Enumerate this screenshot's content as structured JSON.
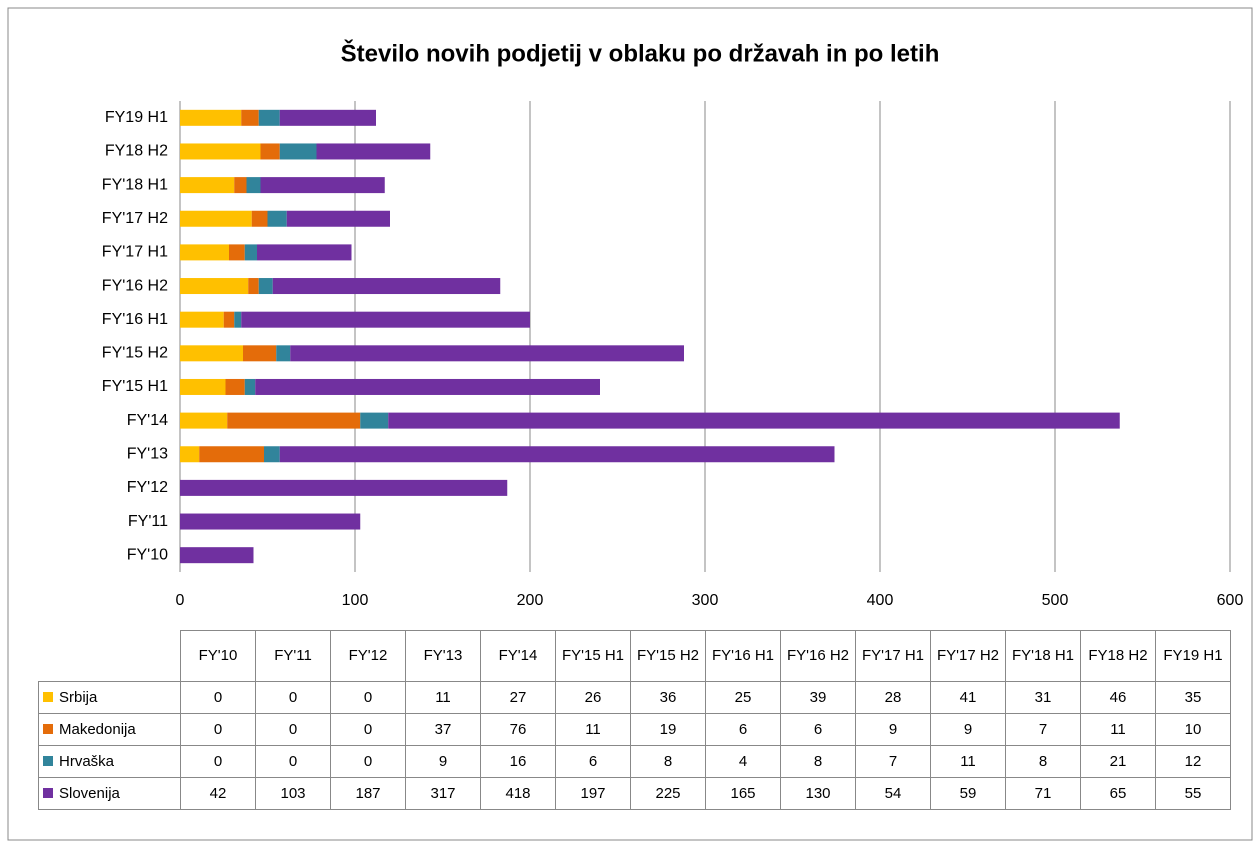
{
  "chart_data": {
    "type": "bar",
    "orientation": "horizontal",
    "stacked": true,
    "title": "Število novih podjetij v oblaku po državah in po letih",
    "categories": [
      "FY'10",
      "FY'11",
      "FY'12",
      "FY'13",
      "FY'14",
      "FY'15 H1",
      "FY'15 H2",
      "FY'16 H1",
      "FY'16 H2",
      "FY'17 H1",
      "FY'17 H2",
      "FY'18 H1",
      "FY18 H2",
      "FY19 H1"
    ],
    "series": [
      {
        "name": "Srbija",
        "color": "#FFC000",
        "values": [
          0,
          0,
          0,
          11,
          27,
          26,
          36,
          25,
          39,
          28,
          41,
          31,
          46,
          35
        ]
      },
      {
        "name": "Makedonija",
        "color": "#E46C0A",
        "values": [
          0,
          0,
          0,
          37,
          76,
          11,
          19,
          6,
          6,
          9,
          9,
          7,
          11,
          10
        ]
      },
      {
        "name": "Hrvaška",
        "color": "#31849B",
        "values": [
          0,
          0,
          0,
          9,
          16,
          6,
          8,
          4,
          8,
          7,
          11,
          8,
          21,
          12
        ]
      },
      {
        "name": "Slovenija",
        "color": "#7030A0",
        "values": [
          42,
          103,
          187,
          317,
          418,
          197,
          225,
          165,
          130,
          54,
          59,
          71,
          65,
          55
        ]
      }
    ],
    "xlim": [
      0,
      600
    ],
    "xticks": [
      0,
      100,
      200,
      300,
      400,
      500,
      600
    ],
    "grid": true,
    "data_table": true
  }
}
